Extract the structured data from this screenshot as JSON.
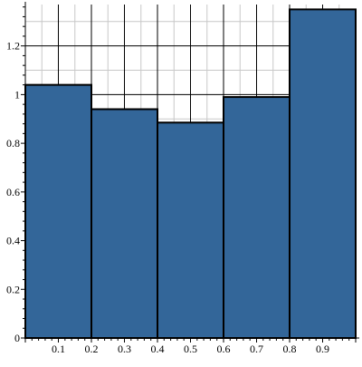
{
  "chart_data": {
    "type": "bar",
    "subtype": "histogram",
    "bins": [
      {
        "x0": 0.0,
        "x1": 0.2,
        "value": 1.04
      },
      {
        "x0": 0.2,
        "x1": 0.4,
        "value": 0.94
      },
      {
        "x0": 0.4,
        "x1": 0.6,
        "value": 0.885
      },
      {
        "x0": 0.6,
        "x1": 0.8,
        "value": 0.99
      },
      {
        "x0": 0.8,
        "x1": 1.0,
        "value": 1.35
      }
    ],
    "title": "",
    "xlabel": "",
    "ylabel": "",
    "xlim": [
      0.0,
      1.0
    ],
    "ylim": [
      0,
      1.37
    ],
    "x_tick_values": [
      0.1,
      0.2,
      0.3,
      0.4,
      0.5,
      0.6,
      0.7,
      0.8,
      0.9
    ],
    "x_tick_labels": [
      "0.1",
      "0.2",
      "0.3",
      "0.4",
      "0.5",
      "0.6",
      "0.7",
      "0.8",
      "0.9"
    ],
    "y_tick_values": [
      0,
      0.2,
      0.4,
      0.6,
      0.8,
      1.0,
      1.2
    ],
    "y_tick_labels": [
      "0",
      "0.2",
      "0.4",
      "0.6",
      "0.8",
      "1",
      "1.2"
    ],
    "grid": true,
    "legend": "none",
    "colors": {
      "bar_fill": "#336699",
      "bar_edge": "#000000",
      "grid_major": "#000000",
      "grid_minor": "#c8c8c8",
      "axis": "#000000"
    }
  }
}
